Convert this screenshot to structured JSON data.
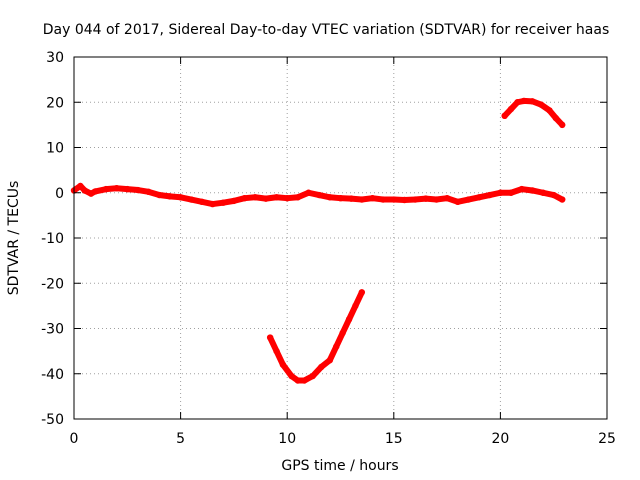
{
  "chart_data": {
    "type": "scatter",
    "title": "Day 044 of 2017, Sidereal Day-to-day VTEC variation (SDTVAR) for receiver haas",
    "xlabel": "GPS time / hours",
    "ylabel": "SDTVAR / TECUs",
    "xlim": [
      0,
      25
    ],
    "ylim": [
      -50,
      30
    ],
    "xticks": [
      0,
      5,
      10,
      15,
      20,
      25
    ],
    "yticks": [
      -50,
      -40,
      -30,
      -20,
      -10,
      0,
      10,
      20,
      30
    ],
    "grid": true,
    "series_color": "#ff0000",
    "series": [
      {
        "name": "main-band",
        "x": [
          0.0,
          0.3,
          0.5,
          0.8,
          1.0,
          1.5,
          2.0,
          2.5,
          3.0,
          3.5,
          4.0,
          4.5,
          5.0,
          5.5,
          6.0,
          6.5,
          7.0,
          7.5,
          8.0,
          8.5,
          9.0,
          9.5,
          10.0,
          10.5,
          11.0,
          11.5,
          12.0,
          12.5,
          13.0,
          13.5,
          14.0,
          14.5,
          15.0,
          15.5,
          16.0,
          16.5,
          17.0,
          17.5,
          18.0,
          18.5,
          19.0,
          19.5,
          20.0,
          20.5,
          21.0,
          21.5,
          22.0,
          22.5,
          22.9
        ],
        "y": [
          0.5,
          1.5,
          0.5,
          -0.2,
          0.3,
          0.8,
          1.0,
          0.8,
          0.6,
          0.2,
          -0.5,
          -0.8,
          -1.0,
          -1.5,
          -2.0,
          -2.5,
          -2.2,
          -1.8,
          -1.2,
          -1.0,
          -1.3,
          -1.0,
          -1.2,
          -1.0,
          0.0,
          -0.5,
          -1.0,
          -1.2,
          -1.3,
          -1.5,
          -1.2,
          -1.5,
          -1.5,
          -1.6,
          -1.5,
          -1.3,
          -1.5,
          -1.2,
          -2.0,
          -1.5,
          -1.0,
          -0.5,
          0.0,
          0.0,
          0.8,
          0.5,
          0.0,
          -0.5,
          -1.5
        ]
      },
      {
        "name": "dip-arc",
        "x": [
          9.2,
          9.5,
          9.8,
          10.2,
          10.5,
          10.8,
          11.2,
          11.6,
          12.0,
          12.3,
          12.6,
          12.9,
          13.2,
          13.5
        ],
        "y": [
          -32,
          -35,
          -38,
          -40.5,
          -41.5,
          -41.5,
          -40.5,
          -38.5,
          -37,
          -34,
          -31,
          -28,
          -25,
          -22
        ]
      },
      {
        "name": "bump-arc",
        "x": [
          20.2,
          20.5,
          20.8,
          21.1,
          21.5,
          21.9,
          22.3,
          22.6,
          22.9
        ],
        "y": [
          17,
          18.5,
          20,
          20.3,
          20.2,
          19.5,
          18.2,
          16.5,
          15
        ]
      }
    ]
  }
}
